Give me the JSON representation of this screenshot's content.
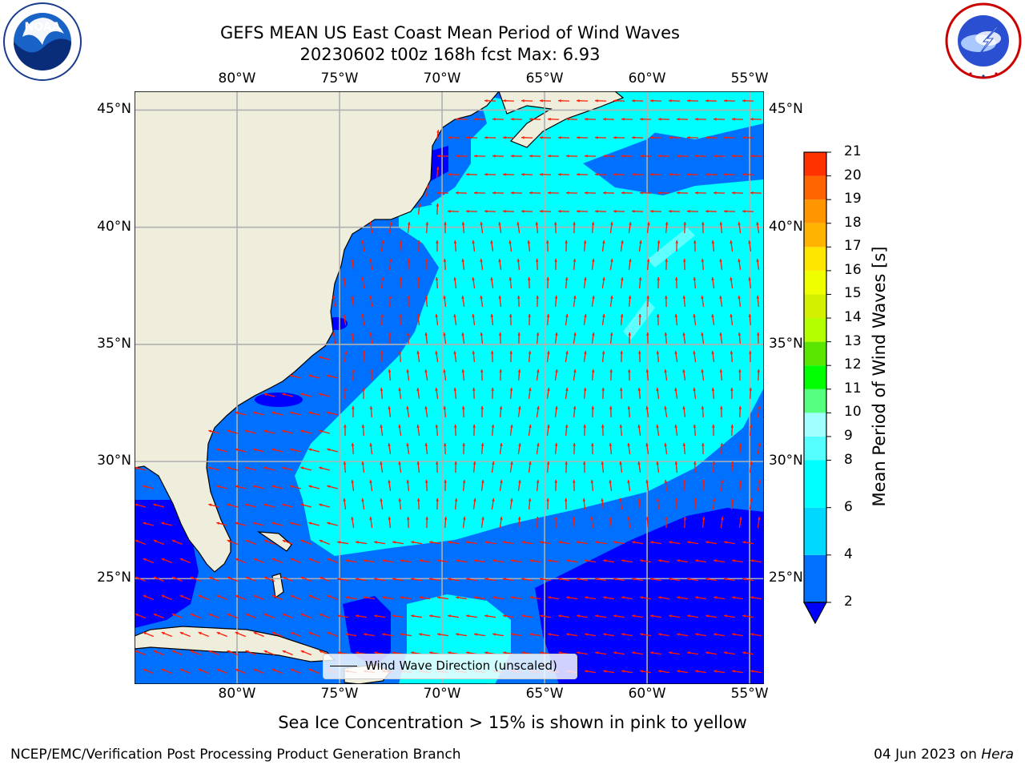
{
  "title": {
    "line1": "GEFS MEAN US East Coast Mean Period of Wind Waves",
    "line2": "20230602 t00z 168h fcst   Max: 6.93"
  },
  "logos": {
    "left": "NOAA",
    "left_ring_text": "NATIONAL OCEANIC AND ATMOSPHERIC ADMINISTRATION · U.S. DEPARTMENT OF COMMERCE",
    "right_ring_text": "NATIONAL WEATHER SERVICE"
  },
  "map": {
    "projection": "lat-lon",
    "lon_range": [
      -85,
      -54.3
    ],
    "lat_range": [
      20.5,
      45.8
    ],
    "lon_ticks": [
      "80°W",
      "75°W",
      "70°W",
      "65°W",
      "60°W",
      "55°W"
    ],
    "lat_ticks": [
      "45°N",
      "40°N",
      "35°N",
      "30°N",
      "25°N"
    ],
    "gridlines": true,
    "land_color": "#efeddc",
    "arrow_color": "#ff1a00",
    "legend_label": "Wind Wave Direction (unscaled)"
  },
  "colorbar": {
    "label": "Mean Period of Wind Waves [s]",
    "ticks": [
      "2",
      "4",
      "6",
      "8",
      "9",
      "10",
      "11",
      "12",
      "13",
      "14",
      "15",
      "16",
      "17",
      "18",
      "19",
      "20",
      "21"
    ],
    "colors": [
      "#0070ff",
      "#00d8ff",
      "#00ffff",
      "#55ffff",
      "#a0ffff",
      "#55ff80",
      "#00ff00",
      "#5ae600",
      "#b4ff00",
      "#d2f000",
      "#f0ff00",
      "#ffe600",
      "#ffb400",
      "#ff9600",
      "#ff6400",
      "#ff3200"
    ],
    "under_color": "#0000ff"
  },
  "notes": {
    "sea_ice": "Sea Ice Concentration > 15% is shown in pink to yellow"
  },
  "footer": {
    "left": "NCEP/EMC/Verification Post Processing Product Generation Branch",
    "date": "04 Jun 2023 on",
    "host": "Hera"
  }
}
